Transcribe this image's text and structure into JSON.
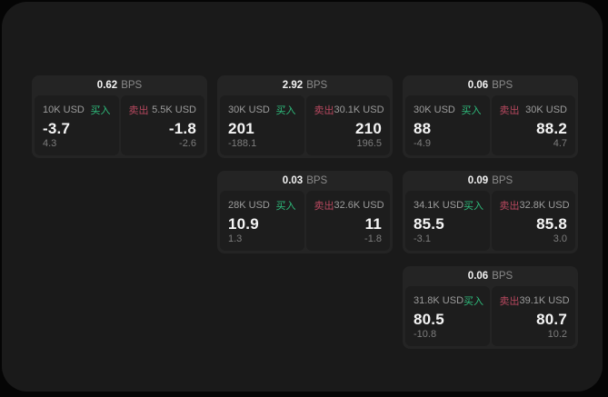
{
  "theme": {
    "panel-bg": "#1a1a1a",
    "card-bg": "#242424",
    "cell-bg": "#1d1d1d",
    "buy-color": "#2ebd7c",
    "sell-color": "#b8485f"
  },
  "labels": {
    "bps_unit": "BPS",
    "buy": "买入",
    "sell": "卖出"
  },
  "cards": [
    {
      "bps": "0.62",
      "buy": {
        "amount": "10K USD",
        "price": "-3.7",
        "delta": "4.3"
      },
      "sell": {
        "amount": "5.5K USD",
        "price": "-1.8",
        "delta": "-2.6"
      }
    },
    {
      "bps": "2.92",
      "buy": {
        "amount": "30K USD",
        "price": "201",
        "delta": "-188.1"
      },
      "sell": {
        "amount": "30.1K USD",
        "price": "210",
        "delta": "196.5"
      }
    },
    {
      "bps": "0.06",
      "buy": {
        "amount": "30K USD",
        "price": "88",
        "delta": "-4.9"
      },
      "sell": {
        "amount": "30K USD",
        "price": "88.2",
        "delta": "4.7"
      }
    },
    {
      "bps": "0.03",
      "buy": {
        "amount": "28K USD",
        "price": "10.9",
        "delta": "1.3"
      },
      "sell": {
        "amount": "32.6K USD",
        "price": "11",
        "delta": "-1.8"
      }
    },
    {
      "bps": "0.09",
      "buy": {
        "amount": "34.1K USD",
        "price": "85.5",
        "delta": "-3.1"
      },
      "sell": {
        "amount": "32.8K USD",
        "price": "85.8",
        "delta": "3.0"
      }
    },
    {
      "bps": "0.06",
      "buy": {
        "amount": "31.8K USD",
        "price": "80.5",
        "delta": "-10.8"
      },
      "sell": {
        "amount": "39.1K USD",
        "price": "80.7",
        "delta": "10.2"
      }
    }
  ]
}
